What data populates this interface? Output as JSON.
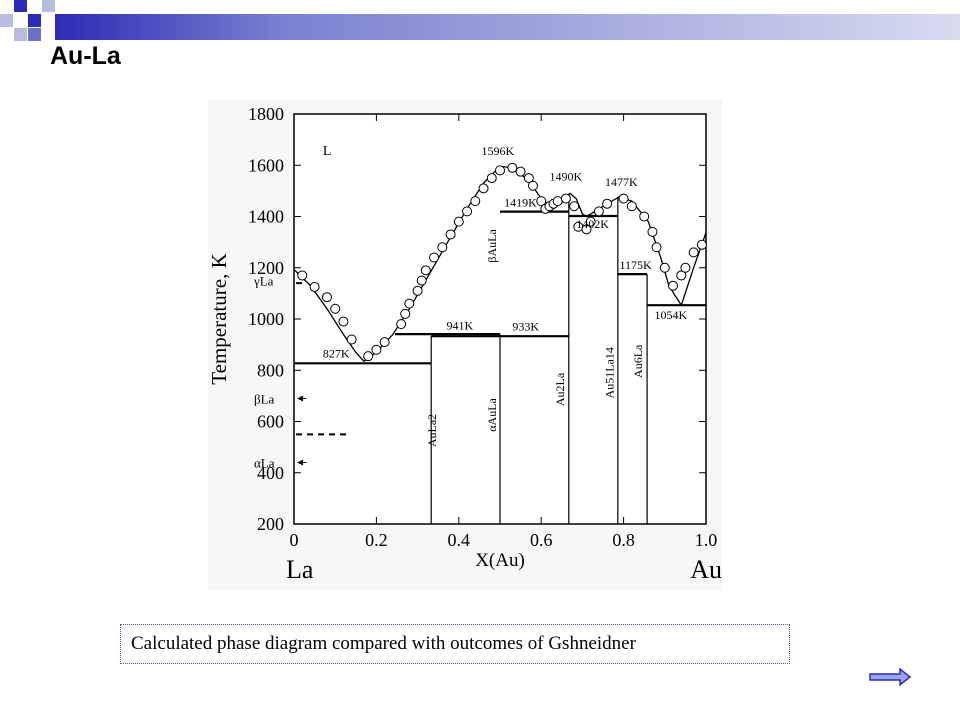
{
  "slide": {
    "title": "Au-La",
    "caption": "Calculated phase diagram compared with outcomes of Gshneidner",
    "accent_color": "#2b2bb5",
    "accent_light": "#b8bde0",
    "nav_icon": "next-arrow-icon"
  },
  "chart_data": {
    "type": "phase-diagram",
    "xlabel": "X(Au)",
    "ylabel": "Temperature, K",
    "xlim": [
      0,
      1.0
    ],
    "ylim": [
      200,
      1800
    ],
    "x_ticks": [
      "0",
      "0.2",
      "0.4",
      "0.6",
      "0.8",
      "1.0"
    ],
    "y_ticks": [
      "200",
      "400",
      "600",
      "800",
      "1000",
      "1200",
      "1400",
      "1600",
      "1800"
    ],
    "end_labels": {
      "left": "La",
      "right": "Au"
    },
    "region_label": "L",
    "liquidus": [
      [
        0.0,
        1193
      ],
      [
        0.04,
        1130
      ],
      [
        0.08,
        1040
      ],
      [
        0.12,
        940
      ],
      [
        0.15,
        870
      ],
      [
        0.17,
        835
      ],
      [
        0.2,
        870
      ],
      [
        0.24,
        940
      ],
      [
        0.28,
        1040
      ],
      [
        0.33,
        1180
      ],
      [
        0.38,
        1320
      ],
      [
        0.42,
        1430
      ],
      [
        0.46,
        1530
      ],
      [
        0.5,
        1596
      ],
      [
        0.53,
        1590
      ],
      [
        0.57,
        1540
      ],
      [
        0.6,
        1470
      ],
      [
        0.63,
        1430
      ],
      [
        0.655,
        1470
      ],
      [
        0.67,
        1490
      ],
      [
        0.685,
        1470
      ],
      [
        0.7,
        1410
      ],
      [
        0.71,
        1400
      ],
      [
        0.73,
        1420
      ],
      [
        0.76,
        1450
      ],
      [
        0.79,
        1477
      ],
      [
        0.82,
        1460
      ],
      [
        0.86,
        1380
      ],
      [
        0.89,
        1240
      ],
      [
        0.91,
        1130
      ],
      [
        0.94,
        1054
      ],
      [
        0.97,
        1200
      ],
      [
        1.0,
        1337
      ]
    ],
    "experimental_points": [
      [
        0.02,
        1170
      ],
      [
        0.05,
        1125
      ],
      [
        0.08,
        1085
      ],
      [
        0.1,
        1040
      ],
      [
        0.12,
        990
      ],
      [
        0.14,
        920
      ],
      [
        0.18,
        855
      ],
      [
        0.2,
        880
      ],
      [
        0.22,
        910
      ],
      [
        0.26,
        980
      ],
      [
        0.27,
        1020
      ],
      [
        0.28,
        1060
      ],
      [
        0.3,
        1110
      ],
      [
        0.31,
        1150
      ],
      [
        0.32,
        1190
      ],
      [
        0.34,
        1240
      ],
      [
        0.36,
        1280
      ],
      [
        0.38,
        1330
      ],
      [
        0.4,
        1380
      ],
      [
        0.42,
        1420
      ],
      [
        0.44,
        1460
      ],
      [
        0.46,
        1510
      ],
      [
        0.48,
        1550
      ],
      [
        0.5,
        1580
      ],
      [
        0.53,
        1590
      ],
      [
        0.55,
        1575
      ],
      [
        0.57,
        1550
      ],
      [
        0.58,
        1520
      ],
      [
        0.6,
        1460
      ],
      [
        0.61,
        1430
      ],
      [
        0.62,
        1440
      ],
      [
        0.63,
        1450
      ],
      [
        0.64,
        1460
      ],
      [
        0.66,
        1470
      ],
      [
        0.68,
        1440
      ],
      [
        0.69,
        1360
      ],
      [
        0.71,
        1350
      ],
      [
        0.72,
        1380
      ],
      [
        0.74,
        1420
      ],
      [
        0.76,
        1450
      ],
      [
        0.8,
        1470
      ],
      [
        0.82,
        1440
      ],
      [
        0.85,
        1400
      ],
      [
        0.87,
        1340
      ],
      [
        0.88,
        1280
      ],
      [
        0.9,
        1200
      ],
      [
        0.92,
        1130
      ],
      [
        0.94,
        1170
      ],
      [
        0.95,
        1200
      ],
      [
        0.97,
        1260
      ],
      [
        0.99,
        1290
      ]
    ],
    "invariants": [
      {
        "label": "827K",
        "T": 827,
        "x1": 0.0,
        "x2": 0.333
      },
      {
        "label": "941K",
        "T": 941,
        "x1": 0.245,
        "x2": 0.5
      },
      {
        "label": "933K",
        "T": 933,
        "x1": 0.333,
        "x2": 0.667
      },
      {
        "label": "1419K",
        "T": 1419,
        "x1": 0.5,
        "x2": 0.667
      },
      {
        "label": "1402K",
        "T": 1402,
        "x1": 0.667,
        "x2": 0.786
      },
      {
        "label": "1175K",
        "T": 1175,
        "x1": 0.786,
        "x2": 0.857
      },
      {
        "label": "1054K",
        "T": 1054,
        "x1": 0.857,
        "x2": 1.0
      }
    ],
    "peak_labels": [
      {
        "label": "1596K",
        "x": 0.5,
        "T": 1596
      },
      {
        "label": "1490K",
        "x": 0.667,
        "T": 1490
      },
      {
        "label": "1477K",
        "x": 0.786,
        "T": 1477
      }
    ],
    "compounds": [
      {
        "label": "AuLa2",
        "x": 0.333,
        "Tmax": 933
      },
      {
        "label": "αAuLa",
        "x": 0.5,
        "Tmax": 941
      },
      {
        "label": "βAuLa",
        "x": 0.5,
        "Tmax": 1596
      },
      {
        "label": "Au2La",
        "x": 0.667,
        "Tmax": 1490
      },
      {
        "label": "Au51La14",
        "x": 0.786,
        "Tmax": 1477
      },
      {
        "label": "Au6La",
        "x": 0.857,
        "Tmax": 1175
      }
    ],
    "la_phases": [
      {
        "label": "γLa",
        "T": 1150
      },
      {
        "label": "βLa",
        "T": 690
      },
      {
        "label": "αLa",
        "T": 440
      }
    ],
    "la_transitions": [
      1140,
      550
    ]
  }
}
